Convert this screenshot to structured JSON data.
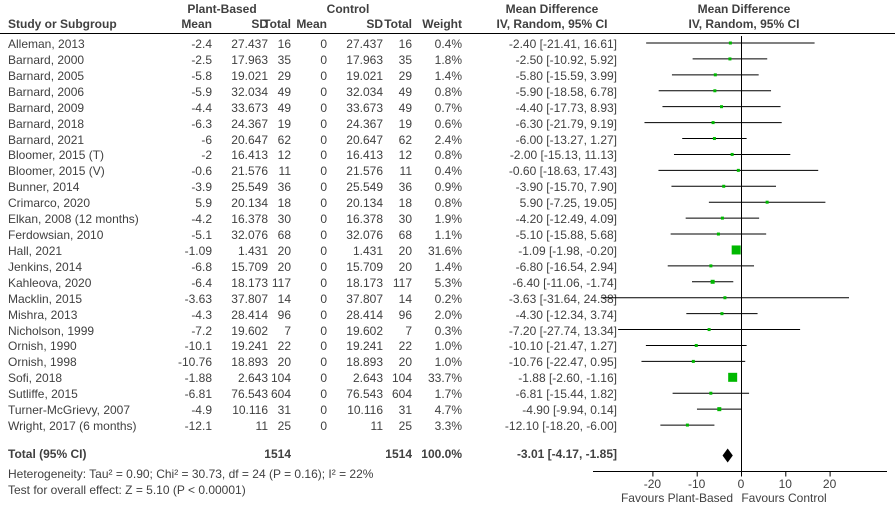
{
  "chart_data": {
    "type": "forest",
    "title": "Mean Difference forest plot (IV, Random, 95% CI), Plant-Based vs Control",
    "group_labels": {
      "treatment": "Plant-Based",
      "control": "Control"
    },
    "effect_header": {
      "line1": "Mean Difference",
      "line2": "IV, Random, 95% CI"
    },
    "columns": {
      "study": "Study or Subgroup",
      "mean": "Mean",
      "sd": "SD",
      "total": "Total",
      "weight": "Weight"
    },
    "studies": [
      {
        "name": "Alleman, 2013",
        "mean_t": "-2.4",
        "sd_t": "27.437",
        "n_t": "16",
        "mean_c": "0",
        "sd_c": "27.437",
        "n_c": "16",
        "weight": "0.4%",
        "ci": "-2.40 [-21.41, 16.61]",
        "md": -2.4,
        "lo": -21.41,
        "hi": 16.61,
        "w": 0.4
      },
      {
        "name": "Barnard, 2000",
        "mean_t": "-2.5",
        "sd_t": "17.963",
        "n_t": "35",
        "mean_c": "0",
        "sd_c": "17.963",
        "n_c": "35",
        "weight": "1.8%",
        "ci": "-2.50 [-10.92, 5.92]",
        "md": -2.5,
        "lo": -10.92,
        "hi": 5.92,
        "w": 1.8
      },
      {
        "name": "Barnard, 2005",
        "mean_t": "-5.8",
        "sd_t": "19.021",
        "n_t": "29",
        "mean_c": "0",
        "sd_c": "19.021",
        "n_c": "29",
        "weight": "1.4%",
        "ci": "-5.80 [-15.59, 3.99]",
        "md": -5.8,
        "lo": -15.59,
        "hi": 3.99,
        "w": 1.4
      },
      {
        "name": "Barnard, 2006",
        "mean_t": "-5.9",
        "sd_t": "32.034",
        "n_t": "49",
        "mean_c": "0",
        "sd_c": "32.034",
        "n_c": "49",
        "weight": "0.8%",
        "ci": "-5.90 [-18.58, 6.78]",
        "md": -5.9,
        "lo": -18.58,
        "hi": 6.78,
        "w": 0.8
      },
      {
        "name": "Barnard, 2009",
        "mean_t": "-4.4",
        "sd_t": "33.673",
        "n_t": "49",
        "mean_c": "0",
        "sd_c": "33.673",
        "n_c": "49",
        "weight": "0.7%",
        "ci": "-4.40 [-17.73, 8.93]",
        "md": -4.4,
        "lo": -17.73,
        "hi": 8.93,
        "w": 0.7
      },
      {
        "name": "Barnard, 2018",
        "mean_t": "-6.3",
        "sd_t": "24.367",
        "n_t": "19",
        "mean_c": "0",
        "sd_c": "24.367",
        "n_c": "19",
        "weight": "0.6%",
        "ci": "-6.30 [-21.79, 9.19]",
        "md": -6.3,
        "lo": -21.79,
        "hi": 9.19,
        "w": 0.6
      },
      {
        "name": "Barnard, 2021",
        "mean_t": "-6",
        "sd_t": "20.647",
        "n_t": "62",
        "mean_c": "0",
        "sd_c": "20.647",
        "n_c": "62",
        "weight": "2.4%",
        "ci": "-6.00 [-13.27, 1.27]",
        "md": -6.0,
        "lo": -13.27,
        "hi": 1.27,
        "w": 2.4
      },
      {
        "name": "Bloomer, 2015 (T)",
        "mean_t": "-2",
        "sd_t": "16.413",
        "n_t": "12",
        "mean_c": "0",
        "sd_c": "16.413",
        "n_c": "12",
        "weight": "0.8%",
        "ci": "-2.00 [-15.13, 11.13]",
        "md": -2.0,
        "lo": -15.13,
        "hi": 11.13,
        "w": 0.8
      },
      {
        "name": "Bloomer, 2015 (V)",
        "mean_t": "-0.6",
        "sd_t": "21.576",
        "n_t": "11",
        "mean_c": "0",
        "sd_c": "21.576",
        "n_c": "11",
        "weight": "0.4%",
        "ci": "-0.60 [-18.63, 17.43]",
        "md": -0.6,
        "lo": -18.63,
        "hi": 17.43,
        "w": 0.4
      },
      {
        "name": "Bunner, 2014",
        "mean_t": "-3.9",
        "sd_t": "25.549",
        "n_t": "36",
        "mean_c": "0",
        "sd_c": "25.549",
        "n_c": "36",
        "weight": "0.9%",
        "ci": "-3.90 [-15.70, 7.90]",
        "md": -3.9,
        "lo": -15.7,
        "hi": 7.9,
        "w": 0.9
      },
      {
        "name": "Crimarco, 2020",
        "mean_t": "5.9",
        "sd_t": "20.134",
        "n_t": "18",
        "mean_c": "0",
        "sd_c": "20.134",
        "n_c": "18",
        "weight": "0.8%",
        "ci": "5.90 [-7.25, 19.05]",
        "md": 5.9,
        "lo": -7.25,
        "hi": 19.05,
        "w": 0.8
      },
      {
        "name": "Elkan, 2008 (12 months)",
        "mean_t": "-4.2",
        "sd_t": "16.378",
        "n_t": "30",
        "mean_c": "0",
        "sd_c": "16.378",
        "n_c": "30",
        "weight": "1.9%",
        "ci": "-4.20 [-12.49, 4.09]",
        "md": -4.2,
        "lo": -12.49,
        "hi": 4.09,
        "w": 1.9
      },
      {
        "name": "Ferdowsian, 2010",
        "mean_t": "-5.1",
        "sd_t": "32.076",
        "n_t": "68",
        "mean_c": "0",
        "sd_c": "32.076",
        "n_c": "68",
        "weight": "1.1%",
        "ci": "-5.10 [-15.88, 5.68]",
        "md": -5.1,
        "lo": -15.88,
        "hi": 5.68,
        "w": 1.1
      },
      {
        "name": "Hall, 2021",
        "mean_t": "-1.09",
        "sd_t": "1.431",
        "n_t": "20",
        "mean_c": "0",
        "sd_c": "1.431",
        "n_c": "20",
        "weight": "31.6%",
        "ci": "-1.09 [-1.98, -0.20]",
        "md": -1.09,
        "lo": -1.98,
        "hi": -0.2,
        "w": 31.6
      },
      {
        "name": "Jenkins, 2014",
        "mean_t": "-6.8",
        "sd_t": "15.709",
        "n_t": "20",
        "mean_c": "0",
        "sd_c": "15.709",
        "n_c": "20",
        "weight": "1.4%",
        "ci": "-6.80 [-16.54, 2.94]",
        "md": -6.8,
        "lo": -16.54,
        "hi": 2.94,
        "w": 1.4
      },
      {
        "name": "Kahleova, 2020",
        "mean_t": "-6.4",
        "sd_t": "18.173",
        "n_t": "117",
        "mean_c": "0",
        "sd_c": "18.173",
        "n_c": "117",
        "weight": "5.3%",
        "ci": "-6.40 [-11.06, -1.74]",
        "md": -6.4,
        "lo": -11.06,
        "hi": -1.74,
        "w": 5.3
      },
      {
        "name": "Macklin, 2015",
        "mean_t": "-3.63",
        "sd_t": "37.807",
        "n_t": "14",
        "mean_c": "0",
        "sd_c": "37.807",
        "n_c": "14",
        "weight": "0.2%",
        "ci": "-3.63 [-31.64, 24.38]",
        "md": -3.63,
        "lo": -31.64,
        "hi": 24.38,
        "w": 0.2
      },
      {
        "name": "Mishra, 2013",
        "mean_t": "-4.3",
        "sd_t": "28.414",
        "n_t": "96",
        "mean_c": "0",
        "sd_c": "28.414",
        "n_c": "96",
        "weight": "2.0%",
        "ci": "-4.30 [-12.34, 3.74]",
        "md": -4.3,
        "lo": -12.34,
        "hi": 3.74,
        "w": 2.0
      },
      {
        "name": "Nicholson, 1999",
        "mean_t": "-7.2",
        "sd_t": "19.602",
        "n_t": "7",
        "mean_c": "0",
        "sd_c": "19.602",
        "n_c": "7",
        "weight": "0.3%",
        "ci": "-7.20 [-27.74, 13.34]",
        "md": -7.2,
        "lo": -27.74,
        "hi": 13.34,
        "w": 0.3
      },
      {
        "name": "Ornish, 1990",
        "mean_t": "-10.1",
        "sd_t": "19.241",
        "n_t": "22",
        "mean_c": "0",
        "sd_c": "19.241",
        "n_c": "22",
        "weight": "1.0%",
        "ci": "-10.10 [-21.47, 1.27]",
        "md": -10.1,
        "lo": -21.47,
        "hi": 1.27,
        "w": 1.0
      },
      {
        "name": "Ornish, 1998",
        "mean_t": "-10.76",
        "sd_t": "18.893",
        "n_t": "20",
        "mean_c": "0",
        "sd_c": "18.893",
        "n_c": "20",
        "weight": "1.0%",
        "ci": "-10.76 [-22.47, 0.95]",
        "md": -10.76,
        "lo": -22.47,
        "hi": 0.95,
        "w": 1.0
      },
      {
        "name": "Sofi, 2018",
        "mean_t": "-1.88",
        "sd_t": "2.643",
        "n_t": "104",
        "mean_c": "0",
        "sd_c": "2.643",
        "n_c": "104",
        "weight": "33.7%",
        "ci": "-1.88 [-2.60, -1.16]",
        "md": -1.88,
        "lo": -2.6,
        "hi": -1.16,
        "w": 33.7
      },
      {
        "name": "Sutliffe, 2015",
        "mean_t": "-6.81",
        "sd_t": "76.543",
        "n_t": "604",
        "mean_c": "0",
        "sd_c": "76.543",
        "n_c": "604",
        "weight": "1.7%",
        "ci": "-6.81 [-15.44, 1.82]",
        "md": -6.81,
        "lo": -15.44,
        "hi": 1.82,
        "w": 1.7
      },
      {
        "name": "Turner-McGrievy, 2007",
        "mean_t": "-4.9",
        "sd_t": "10.116",
        "n_t": "31",
        "mean_c": "0",
        "sd_c": "10.116",
        "n_c": "31",
        "weight": "4.7%",
        "ci": "-4.90 [-9.94, 0.14]",
        "md": -4.9,
        "lo": -9.94,
        "hi": 0.14,
        "w": 4.7
      },
      {
        "name": "Wright, 2017 (6 months)",
        "mean_t": "-12.1",
        "sd_t": "11",
        "n_t": "25",
        "mean_c": "0",
        "sd_c": "11",
        "n_c": "25",
        "weight": "3.3%",
        "ci": "-12.10 [-18.20, -6.00]",
        "md": -12.1,
        "lo": -18.2,
        "hi": -6.0,
        "w": 3.3
      }
    ],
    "total": {
      "label": "Total (95% CI)",
      "n_t": "1514",
      "n_c": "1514",
      "weight": "100.0%",
      "ci": "-3.01 [-4.17, -1.85]",
      "md": -3.01,
      "lo": -4.17,
      "hi": -1.85
    },
    "footnotes": {
      "heterogeneity": "Heterogeneity: Tau² = 0.90; Chi² = 30.73, df = 24 (P = 0.16); I² = 22%",
      "overall": "Test for overall effect: Z = 5.10 (P < 0.00001)"
    },
    "axis": {
      "ticks": [
        -20,
        -10,
        0,
        10,
        20
      ],
      "xmin": -33,
      "xmax": 33,
      "favours_left": "Favours Plant-Based",
      "favours_right": "Favours Control"
    },
    "legend_position": "none",
    "grid": false,
    "colors": {
      "square": "#00b800",
      "diamond": "#000000",
      "line": "#000000",
      "text": "#404040"
    }
  }
}
